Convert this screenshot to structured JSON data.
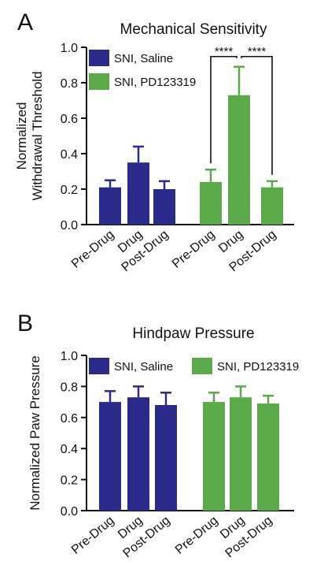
{
  "chart_data": [
    {
      "type": "bar",
      "panel": "A",
      "title": "Mechanical Sensitivity",
      "ylabel_lines": [
        "Normalized",
        "Withdrawal Threshold"
      ],
      "ylim": [
        0,
        1.0
      ],
      "yticks": [
        "0.0",
        "0.2",
        "0.4",
        "0.6",
        "0.8",
        "1.0"
      ],
      "legend": {
        "placement": "top-left",
        "layout": "stacked"
      },
      "groups": [
        {
          "name": "SNI, Saline",
          "color": "#2a2a8a",
          "categories": [
            "Pre-Drug",
            "Drug",
            "Post-Drug"
          ],
          "values": [
            0.21,
            0.35,
            0.2
          ],
          "errors": [
            0.04,
            0.09,
            0.045
          ]
        },
        {
          "name": "SNI, PD123319",
          "color": "#5aaa4a",
          "categories": [
            "Pre-Drug",
            "Drug",
            "Post-Drug"
          ],
          "values": [
            0.24,
            0.73,
            0.21
          ],
          "errors": [
            0.07,
            0.16,
            0.035
          ]
        }
      ],
      "significance": [
        {
          "group": 1,
          "from": 0,
          "to": 1,
          "label": "****"
        },
        {
          "group": 1,
          "from": 1,
          "to": 2,
          "label": "****"
        }
      ]
    },
    {
      "type": "bar",
      "panel": "B",
      "title": "Hindpaw Pressure",
      "ylabel_lines": [
        "Normalized Paw Pressure"
      ],
      "ylim": [
        0,
        1.0
      ],
      "yticks": [
        "0.0",
        "0.2",
        "0.4",
        "0.6",
        "0.8",
        "1.0"
      ],
      "legend": {
        "placement": "top",
        "layout": "inline"
      },
      "groups": [
        {
          "name": "SNI, Saline",
          "color": "#2a2a8a",
          "categories": [
            "Pre-Drug",
            "Drug",
            "Post-Drug"
          ],
          "values": [
            0.7,
            0.73,
            0.68
          ],
          "errors": [
            0.07,
            0.07,
            0.08
          ]
        },
        {
          "name": "SNI, PD123319",
          "color": "#5aaa4a",
          "categories": [
            "Pre-Drug",
            "Drug",
            "Post-Drug"
          ],
          "values": [
            0.7,
            0.73,
            0.69
          ],
          "errors": [
            0.06,
            0.07,
            0.05
          ]
        }
      ],
      "significance": []
    }
  ]
}
